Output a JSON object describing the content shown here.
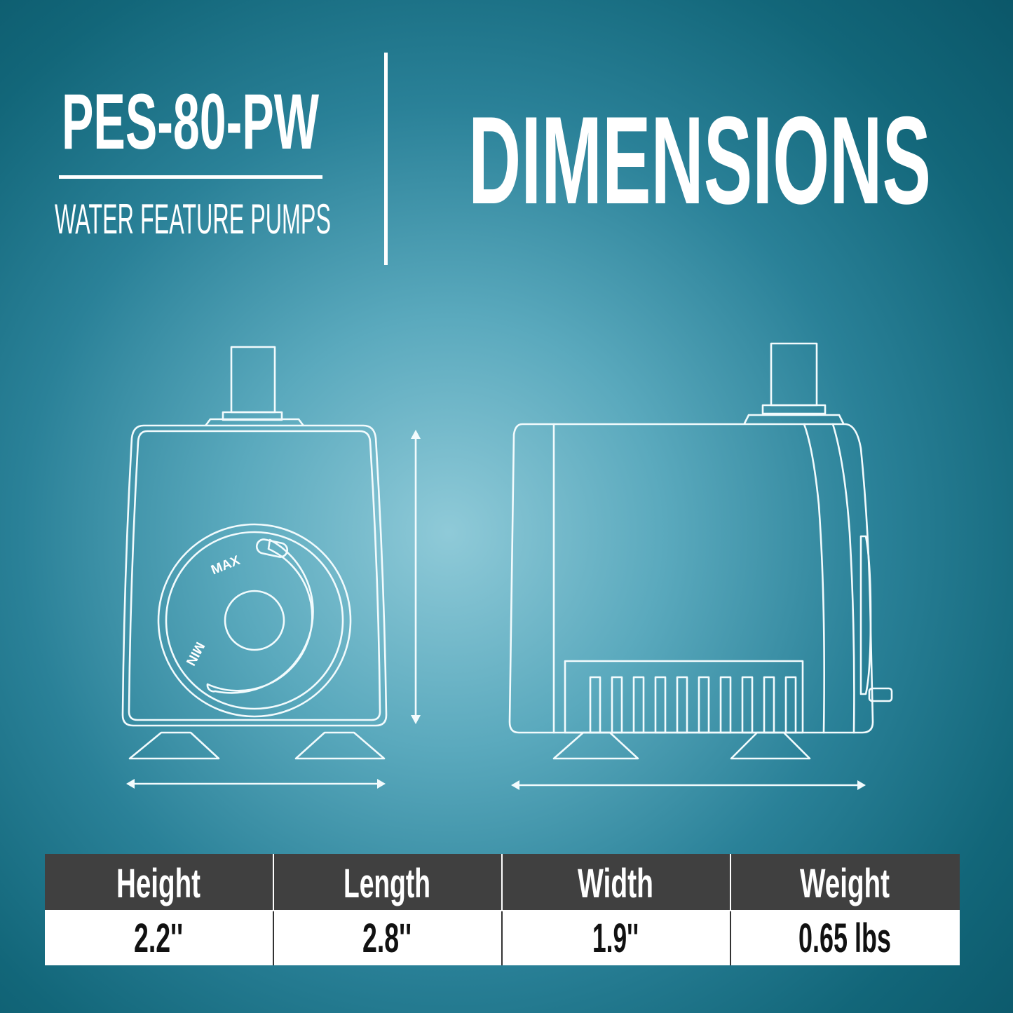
{
  "header": {
    "model": "PES-80-PW",
    "subtitle": "WATER FEATURE PUMPS",
    "title": "DIMENSIONS"
  },
  "diagram": {
    "dial_max_label": "MAX",
    "dial_min_label": "MIN"
  },
  "specs_table": {
    "columns": [
      "Height",
      "Length",
      "Width",
      "Weight"
    ],
    "values": [
      "2.2''",
      "2.8''",
      "1.9''",
      "0.65 lbs"
    ]
  },
  "colors": {
    "background_center": "#8fcad8",
    "background_edge": "#0b5769",
    "table_header": "#404040",
    "table_body": "#ffffff",
    "line_art": "#f2fbfd"
  }
}
